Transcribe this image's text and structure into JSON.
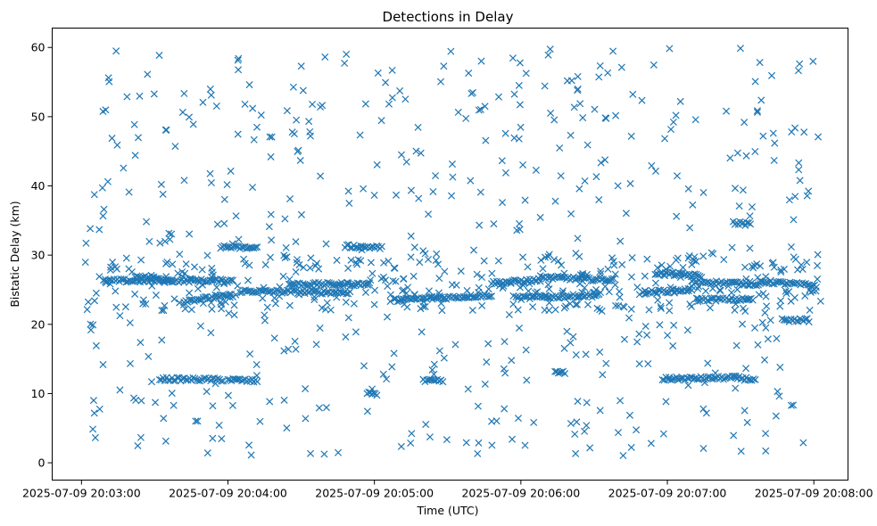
{
  "chart_data": {
    "type": "scatter",
    "title": "Detections in Delay",
    "xlabel": "Time (UTC)",
    "ylabel": "Bistatic Delay (km)",
    "marker": "x",
    "color": "#1f77b4",
    "grid": false,
    "legend": "none",
    "xlim": [
      "2025-07-09 20:02:48",
      "2025-07-09 20:08:14"
    ],
    "ylim": [
      -2.5,
      62.8
    ],
    "xticks": [
      "2025-07-09 20:03:00",
      "2025-07-09 20:04:00",
      "2025-07-09 20:05:00",
      "2025-07-09 20:06:00",
      "2025-07-09 20:07:00",
      "2025-07-09 20:08:00"
    ],
    "yticks": [
      0,
      10,
      20,
      30,
      40,
      50,
      60
    ],
    "x_range": [
      "2025-07-09 20:03:01",
      "2025-07-09 20:08:03"
    ],
    "tracks": [
      {
        "x": [
          "2025-07-09 20:03:09",
          "2025-07-09 20:04:02"
        ],
        "y": [
          26.3,
          26.3
        ]
      },
      {
        "x": [
          "2025-07-09 20:03:22",
          "2025-07-09 20:03:36"
        ],
        "y": [
          27.0,
          26.4
        ]
      },
      {
        "x": [
          "2025-07-09 20:03:42",
          "2025-07-09 20:04:02"
        ],
        "y": [
          23.4,
          24.2
        ]
      },
      {
        "x": [
          "2025-07-09 20:03:57",
          "2025-07-09 20:04:12"
        ],
        "y": [
          31.2,
          31.0
        ]
      },
      {
        "x": [
          "2025-07-09 20:04:05",
          "2025-07-09 20:04:50"
        ],
        "y": [
          24.8,
          24.6
        ]
      },
      {
        "x": [
          "2025-07-09 20:04:25",
          "2025-07-09 20:04:58"
        ],
        "y": [
          25.8,
          25.8
        ]
      },
      {
        "x": [
          "2025-07-09 20:04:48",
          "2025-07-09 20:05:03"
        ],
        "y": [
          31.3,
          31.1
        ]
      },
      {
        "x": [
          "2025-07-09 20:05:08",
          "2025-07-09 20:05:48"
        ],
        "y": [
          23.5,
          24.2
        ]
      },
      {
        "x": [
          "2025-07-09 20:05:48",
          "2025-07-09 20:06:08"
        ],
        "y": [
          26.0,
          26.4
        ]
      },
      {
        "x": [
          "2025-07-09 20:05:58",
          "2025-07-09 20:06:32"
        ],
        "y": [
          23.8,
          24.2
        ]
      },
      {
        "x": [
          "2025-07-09 20:06:08",
          "2025-07-09 20:06:38"
        ],
        "y": [
          26.8,
          26.4
        ]
      },
      {
        "x": [
          "2025-07-09 20:06:50",
          "2025-07-09 20:07:10"
        ],
        "y": [
          24.6,
          25.0
        ]
      },
      {
        "x": [
          "2025-07-09 20:06:55",
          "2025-07-09 20:07:14"
        ],
        "y": [
          27.4,
          27.0
        ]
      },
      {
        "x": [
          "2025-07-09 20:07:12",
          "2025-07-09 20:07:35"
        ],
        "y": [
          23.6,
          23.6
        ]
      },
      {
        "x": [
          "2025-07-09 20:07:10",
          "2025-07-09 20:07:38"
        ],
        "y": [
          26.2,
          25.8
        ]
      },
      {
        "x": [
          "2025-07-09 20:07:27",
          "2025-07-09 20:07:34"
        ],
        "y": [
          34.7,
          34.4
        ]
      },
      {
        "x": [
          "2025-07-09 20:07:38",
          "2025-07-09 20:08:01"
        ],
        "y": [
          26.2,
          25.6
        ]
      },
      {
        "x": [
          "2025-07-09 20:07:47",
          "2025-07-09 20:07:58"
        ],
        "y": [
          20.6,
          20.6
        ]
      },
      {
        "x": [
          "2025-07-09 20:03:32",
          "2025-07-09 20:03:58"
        ],
        "y": [
          12.1,
          12.0
        ]
      },
      {
        "x": [
          "2025-07-09 20:04:00",
          "2025-07-09 20:04:12"
        ],
        "y": [
          12.0,
          11.8
        ]
      },
      {
        "x": [
          "2025-07-09 20:06:58",
          "2025-07-09 20:07:28"
        ],
        "y": [
          12.1,
          12.3
        ]
      },
      {
        "x": [
          "2025-07-09 20:07:28",
          "2025-07-09 20:07:36"
        ],
        "y": [
          12.3,
          12.0
        ]
      },
      {
        "x": [
          "2025-07-09 20:05:20",
          "2025-07-09 20:05:28"
        ],
        "y": [
          11.8,
          11.8
        ]
      },
      {
        "x": [
          "2025-07-09 20:04:57",
          "2025-07-09 20:05:01"
        ],
        "y": [
          10.0,
          10.0
        ]
      },
      {
        "x": [
          "2025-07-09 20:06:14",
          "2025-07-09 20:06:18"
        ],
        "y": [
          13.0,
          13.0
        ]
      }
    ],
    "noise_y_range": [
      1,
      60
    ]
  }
}
